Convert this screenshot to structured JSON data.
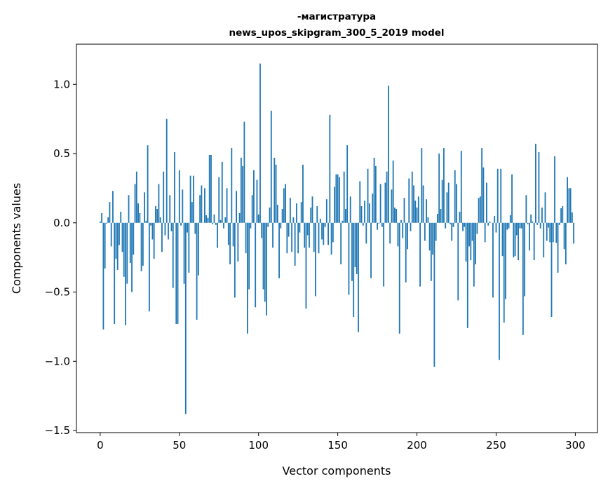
{
  "chart_data": {
    "type": "bar",
    "title": [
      "-магистратура",
      "news_upos_skipgram_300_5_2019 model"
    ],
    "xlabel": "Vector components",
    "ylabel": "Components values",
    "xlim": [
      -15,
      314
    ],
    "ylim": [
      -1.515,
      1.29
    ],
    "xticks": [
      0,
      50,
      100,
      150,
      200,
      250,
      300
    ],
    "xtick_labels": [
      "0",
      "50",
      "100",
      "150",
      "200",
      "250",
      "300"
    ],
    "yticks": [
      1.0,
      0.5,
      0.0,
      -0.5,
      -1.0,
      -1.5
    ],
    "ytick_labels": [
      "1.0",
      "0.5",
      "0.0",
      "−0.5",
      "−1.0",
      "−1.5"
    ],
    "grid": false,
    "bar_color": "#1f77b4",
    "values": [
      0.01,
      0.07,
      -0.77,
      -0.33,
      -0.005,
      0.04,
      0.15,
      -0.17,
      0.23,
      -0.73,
      -0.26,
      -0.34,
      -0.16,
      0.08,
      -0.21,
      -0.39,
      -0.74,
      -0.44,
      0.2,
      -0.29,
      -0.5,
      -0.23,
      0.28,
      0.37,
      0.14,
      0.07,
      -0.35,
      -0.31,
      0.22,
      0.015,
      0.56,
      -0.64,
      -0.02,
      -0.12,
      -0.26,
      0.12,
      0.1,
      0.28,
      0.04,
      -0.21,
      0.37,
      -0.09,
      0.75,
      -0.12,
      0.2,
      -0.06,
      -0.47,
      0.51,
      -0.73,
      -0.73,
      0.38,
      -0.02,
      0.24,
      -0.44,
      -1.38,
      -0.07,
      -0.36,
      0.34,
      0.15,
      0.34,
      -0.08,
      -0.7,
      -0.38,
      0.2,
      0.27,
      0.0,
      0.25,
      0.055,
      0.035,
      0.49,
      0.49,
      -0.01,
      0.06,
      -0.015,
      -0.18,
      0.33,
      0.02,
      0.44,
      -0.04,
      0.04,
      0.25,
      -0.16,
      -0.3,
      0.54,
      -0.17,
      -0.54,
      0.23,
      -0.28,
      0.07,
      0.47,
      0.41,
      0.73,
      -0.22,
      -0.8,
      -0.48,
      -0.04,
      0.2,
      0.38,
      -0.61,
      0.31,
      0.06,
      1.15,
      -0.11,
      -0.48,
      -0.57,
      -0.67,
      -0.03,
      0.11,
      0.81,
      -0.18,
      0.47,
      0.42,
      0.13,
      -0.4,
      -0.04,
      0.1,
      0.25,
      0.28,
      -0.22,
      -0.1,
      0.18,
      -0.21,
      0.04,
      -0.31,
      0.14,
      -0.22,
      -0.07,
      0.15,
      0.42,
      -0.18,
      -0.62,
      -0.09,
      -0.18,
      0.11,
      0.19,
      -0.21,
      -0.53,
      0.12,
      -0.22,
      0.03,
      -0.12,
      -0.16,
      -0.03,
      0.17,
      -0.16,
      0.78,
      -0.23,
      -0.14,
      0.26,
      0.35,
      0.35,
      0.33,
      -0.3,
      0.015,
      0.37,
      0.1,
      0.56,
      -0.52,
      0.19,
      -0.42,
      -0.68,
      -0.32,
      -0.37,
      -0.79,
      0.3,
      0.12,
      -0.02,
      0.16,
      -0.15,
      0.39,
      0.14,
      -0.4,
      0.21,
      0.47,
      0.41,
      -0.05,
      -0.005,
      0.28,
      -0.03,
      -0.46,
      0.29,
      0.37,
      0.99,
      -0.15,
      0.24,
      0.45,
      0.11,
      0.1,
      -0.17,
      -0.8,
      0.02,
      -0.11,
      0.18,
      -0.43,
      -0.19,
      0.32,
      -0.06,
      0.37,
      0.27,
      0.16,
      0.11,
      0.19,
      -0.46,
      0.54,
      0.27,
      -0.13,
      0.17,
      0.04,
      -0.2,
      -0.42,
      -0.23,
      -1.04,
      -0.13,
      0.065,
      0.5,
      0.1,
      0.31,
      0.54,
      -0.04,
      0.22,
      0.29,
      -0.01,
      -0.13,
      -0.03,
      0.38,
      0.28,
      -0.56,
      0.08,
      0.52,
      -0.06,
      -0.03,
      -0.28,
      -0.76,
      -0.17,
      -0.27,
      -0.13,
      -0.46,
      -0.3,
      -0.08,
      0.18,
      0.19,
      0.54,
      0.4,
      -0.14,
      0.29,
      -0.02,
      0.01,
      0.0,
      -0.54,
      0.05,
      -0.07,
      0.39,
      -0.99,
      0.39,
      -0.24,
      -0.72,
      -0.55,
      -0.05,
      -0.04,
      0.055,
      0.35,
      -0.25,
      -0.24,
      -0.09,
      -0.27,
      -0.04,
      -0.04,
      -0.81,
      -0.53,
      0.2,
      -0.01,
      -0.2,
      0.06,
      0.01,
      -0.27,
      0.57,
      -0.015,
      0.51,
      -0.04,
      0.11,
      -0.25,
      0.22,
      -0.13,
      -0.035,
      -0.14,
      -0.68,
      -0.14,
      0.48,
      -0.145,
      -0.36,
      -0.015,
      0.105,
      0.12,
      -0.19,
      -0.3,
      0.33,
      0.25,
      0.25,
      0.075,
      -0.15
    ]
  }
}
